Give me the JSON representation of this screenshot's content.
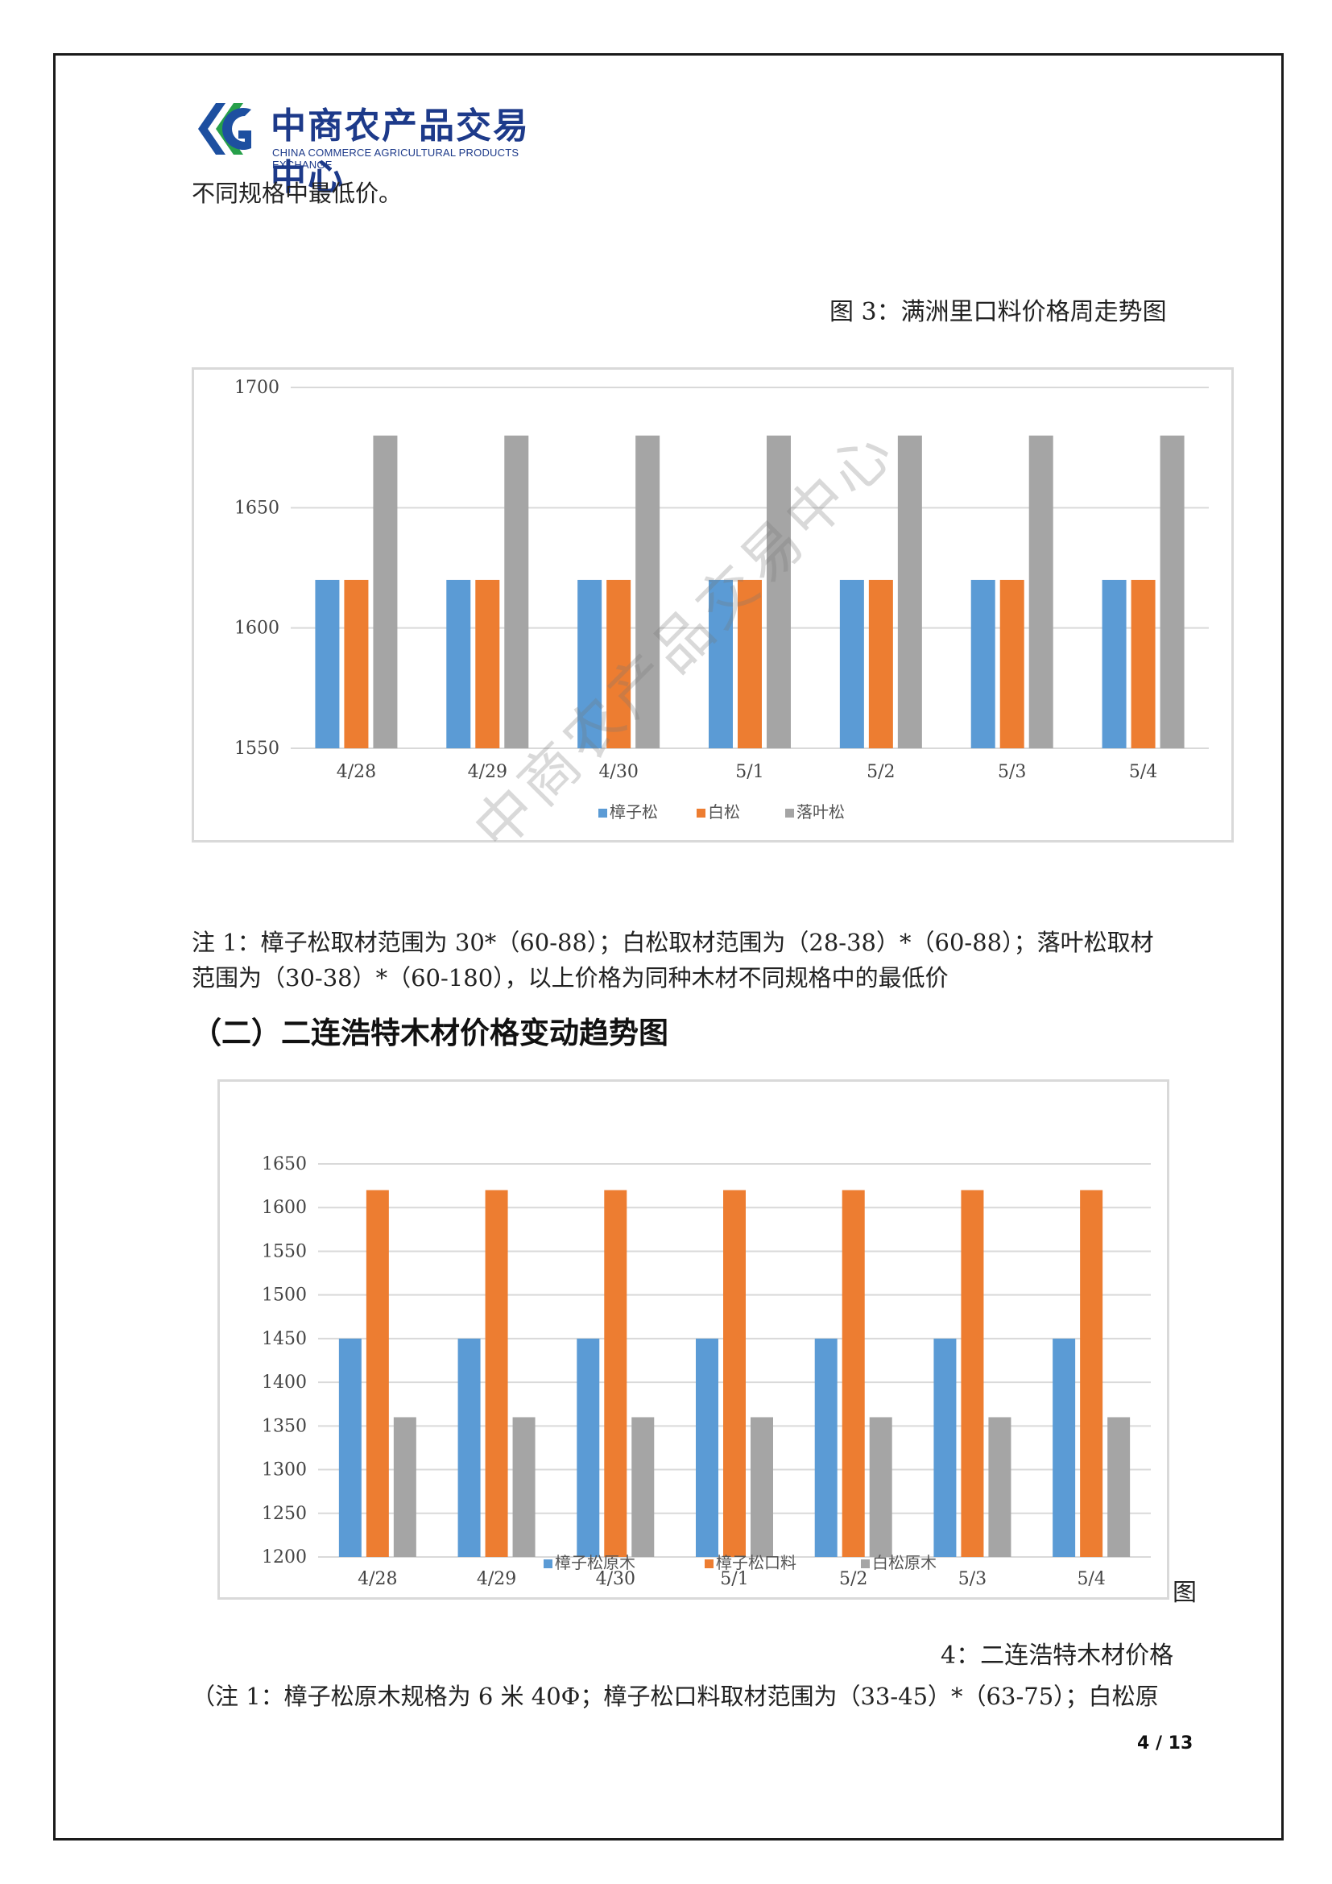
{
  "header": {
    "logo_cn": "中商农产品交易中心",
    "logo_en": "CHINA COMMERCE AGRICULTURAL PRODUCTS EXCHANGE"
  },
  "intro_line": "不同规格中最低价。",
  "figure3": {
    "caption": "图 3：满洲里口料价格周走势图"
  },
  "note1": {
    "line1": "注 1：樟子松取材范围为 30*（60-88）；白松取材范围为（28-38）*（60-88）；落叶松取材",
    "line2": "范围为（30-38）*（60-180），以上价格为同种木材不同规格中的最低价"
  },
  "section2_title": "（二）二连浩特木材价格变动趋势图",
  "figure4": {
    "caption_suffix": "图",
    "caption_line": "4：二连浩特木材价格"
  },
  "note2": {
    "line1": "（注 1：樟子松原木规格为 6 米 40Φ；樟子松口料取材范围为（33-45）*（63-75）；白松原"
  },
  "page_number": "4 / 13",
  "watermark": "中商农产品交易中心",
  "colors": {
    "blue": "#5b9bd5",
    "orange": "#ed7d31",
    "gray": "#a5a5a5"
  },
  "chart_data": [
    {
      "type": "bar",
      "categories": [
        "4/28",
        "4/29",
        "4/30",
        "5/1",
        "5/2",
        "5/3",
        "5/4"
      ],
      "series": [
        {
          "name": "樟子松",
          "values": [
            1620,
            1620,
            1620,
            1620,
            1620,
            1620,
            1620
          ]
        },
        {
          "name": "白松",
          "values": [
            1620,
            1620,
            1620,
            1620,
            1620,
            1620,
            1620
          ]
        },
        {
          "name": "落叶松",
          "values": [
            1680,
            1680,
            1680,
            1680,
            1680,
            1680,
            1680
          ]
        }
      ],
      "ylim": [
        1550,
        1700
      ],
      "yticks": [
        1550,
        1600,
        1650,
        1700
      ],
      "grid": true,
      "legend": "bottom"
    },
    {
      "type": "bar",
      "categories": [
        "4/28",
        "4/29",
        "4/30",
        "5/1",
        "5/2",
        "5/3",
        "5/4"
      ],
      "series": [
        {
          "name": "樟子松原木",
          "values": [
            1450,
            1450,
            1450,
            1450,
            1450,
            1450,
            1450
          ]
        },
        {
          "name": "樟子松口料",
          "values": [
            1620,
            1620,
            1620,
            1620,
            1620,
            1620,
            1620
          ]
        },
        {
          "name": "白松原木",
          "values": [
            1360,
            1360,
            1360,
            1360,
            1360,
            1360,
            1360
          ]
        }
      ],
      "ylim": [
        1200,
        1650
      ],
      "yticks": [
        1200,
        1250,
        1300,
        1350,
        1400,
        1450,
        1500,
        1550,
        1600,
        1650
      ],
      "grid": true,
      "legend": "bottom"
    }
  ]
}
